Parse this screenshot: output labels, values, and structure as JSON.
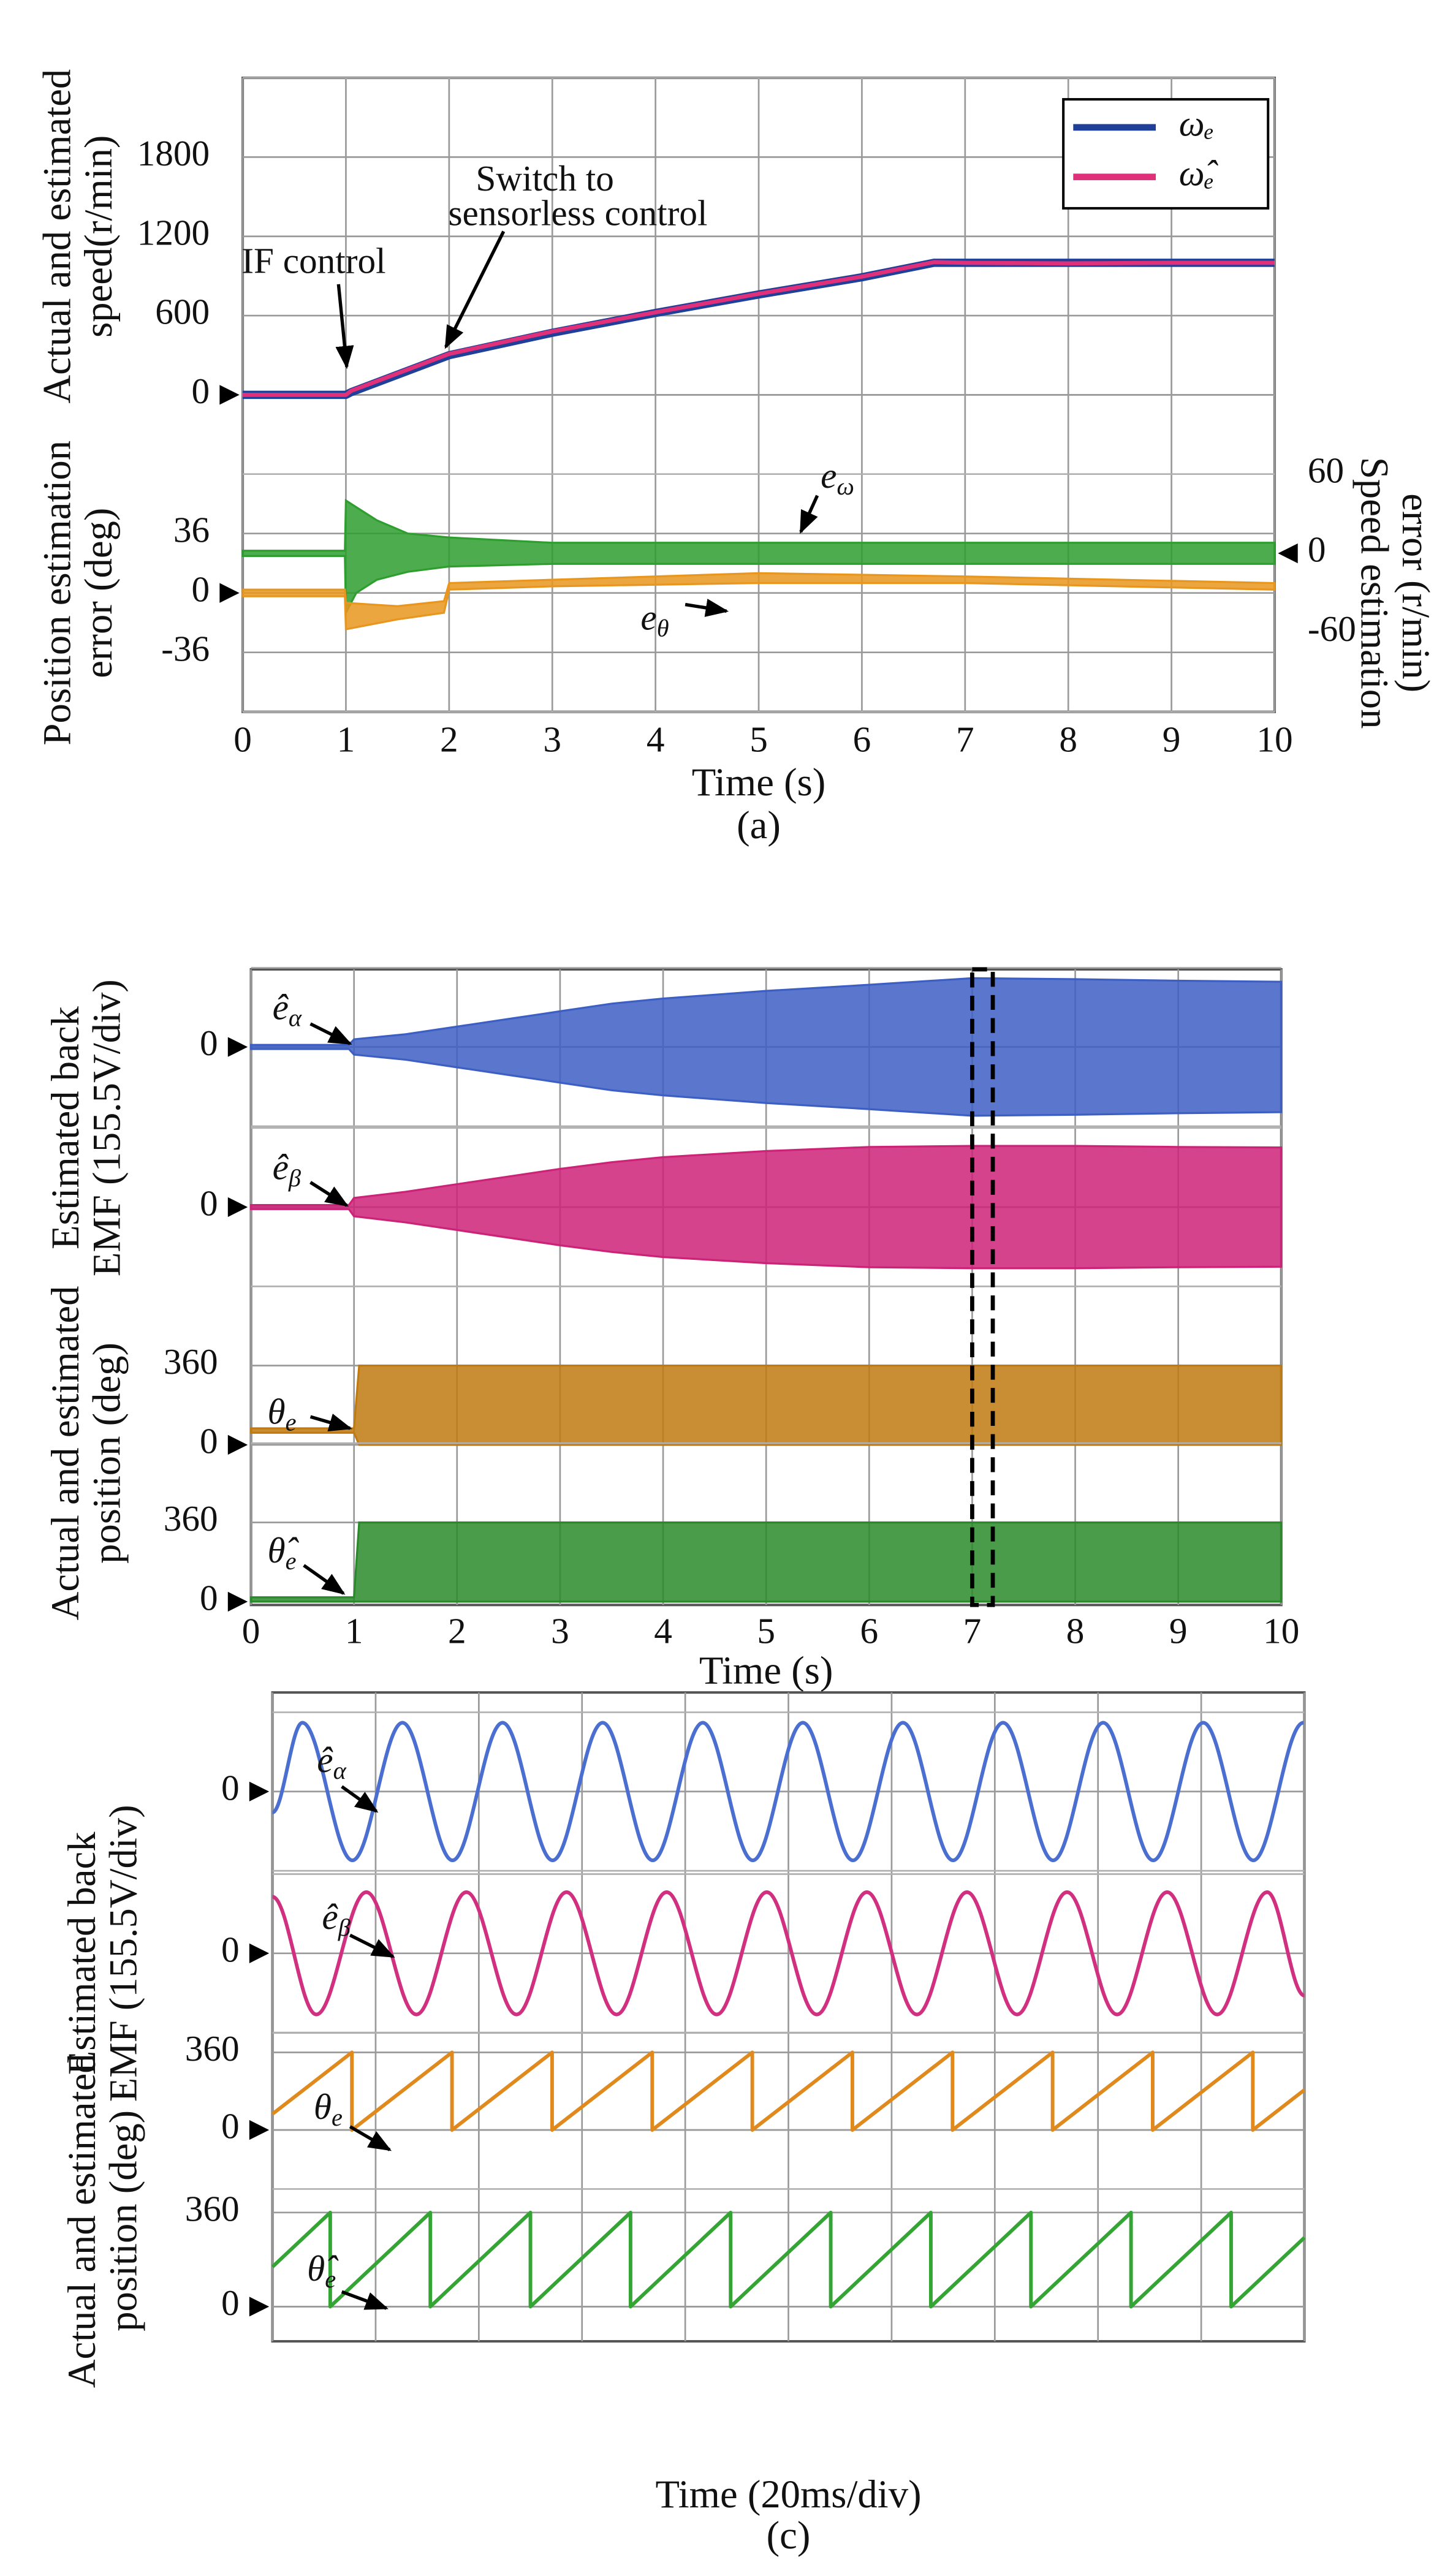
{
  "chart_data": [
    {
      "type": "line",
      "caption": "(a)",
      "xlabel": "Time (s)",
      "xlim": [
        0,
        10
      ],
      "xticks": [
        0,
        1,
        2,
        3,
        4,
        5,
        6,
        7,
        8,
        9,
        10
      ],
      "ylabels": [
        [
          "Actual and estimated",
          "speed(r/min)"
        ],
        [
          "Position estimation",
          "error (deg)"
        ]
      ],
      "y2label": [
        "Speed estimation",
        "error (r/min)"
      ],
      "legend": "upper right",
      "annotations": [
        {
          "text": "IF control"
        },
        {
          "text": "Switch to"
        },
        {
          "text": "sensorless control"
        },
        {
          "text": "e",
          "sub": "ω"
        },
        {
          "text": "e",
          "sub": "θ"
        }
      ],
      "panels": [
        {
          "ylim": [
            0,
            2400
          ],
          "yticks": [
            0,
            600,
            1200,
            1800
          ],
          "series": [
            {
              "name": "ωₑ",
              "color": "#1f3f99",
              "x": [
                0,
                1,
                1.05,
                2,
                3,
                4,
                5,
                6,
                6.7,
                7,
                8,
                9,
                10
              ],
              "values": [
                0,
                0,
                20,
                300,
                470,
                620,
                760,
                890,
                1000,
                1000,
                1000,
                1000,
                1000
              ]
            },
            {
              "name": "ω̂ₑ",
              "color": "#e0307a",
              "x": [
                0,
                1,
                1.05,
                2,
                3,
                4,
                5,
                6,
                6.7,
                7,
                8,
                9,
                10
              ],
              "values": [
                0,
                0,
                30,
                310,
                480,
                625,
                765,
                895,
                1005,
                1000,
                995,
                1000,
                1000
              ]
            }
          ]
        },
        {
          "ylim": [
            -72,
            72
          ],
          "yticks": [
            -36,
            0,
            36
          ],
          "y2lim": [
            -120,
            60
          ],
          "y2ticks": [
            -60,
            0,
            60
          ],
          "series": [
            {
              "axis": "y2",
              "color": "#2e9e2e",
              "x": [
                0,
                0.99,
                1,
                1.1,
                1.3,
                1.6,
                2,
                3,
                5,
                7,
                10
              ],
              "upper": [
                2,
                2,
                40,
                35,
                25,
                15,
                12,
                8,
                8,
                8,
                8
              ],
              "lower": [
                -2,
                -2,
                -45,
                -30,
                -20,
                -14,
                -10,
                -8,
                -8,
                -8,
                -8
              ]
            },
            {
              "color": "#e8961e",
              "x": [
                0,
                0.99,
                1,
                1.5,
                1.95,
                2,
                3,
                5,
                7,
                10
              ],
              "upper": [
                2,
                2,
                -6,
                -8,
                -5,
                6,
                8,
                12,
                10,
                6
              ],
              "lower": [
                -2,
                -2,
                -22,
                -16,
                -12,
                2,
                4,
                6,
                6,
                2
              ]
            }
          ]
        }
      ]
    },
    {
      "type": "line",
      "caption": "(b)",
      "xlabel": "Time (s)",
      "xlim": [
        0,
        10
      ],
      "xticks": [
        0,
        1,
        2,
        3,
        4,
        5,
        6,
        7,
        8,
        9,
        10
      ],
      "ylabels": [
        [
          "Estimated back",
          "EMF (155.5V/div)"
        ],
        [
          "Actual and estimated",
          "position (deg)"
        ]
      ],
      "highlight": [
        7,
        7.2
      ],
      "annotations": [
        {
          "text": "ê",
          "sub": "α"
        },
        {
          "text": "ê",
          "sub": "β"
        },
        {
          "text": "θ",
          "sub": "e"
        },
        {
          "text": "θ̂",
          "sub": "e"
        }
      ],
      "panels": [
        {
          "ylim": [
            -155.5,
            155.5
          ],
          "yticks": [
            0
          ],
          "series": [
            {
              "color": "#3d5fc4",
              "x": [
                0,
                0.95,
                1,
                1.5,
                2,
                2.5,
                3,
                3.5,
                4,
                5,
                6,
                7,
                8,
                9,
                10
              ],
              "upper": [
                4,
                4,
                15,
                25,
                40,
                55,
                70,
                85,
                95,
                110,
                122,
                135,
                133,
                130,
                128
              ],
              "lower": [
                -4,
                -4,
                -15,
                -25,
                -40,
                -55,
                -70,
                -85,
                -95,
                -110,
                -122,
                -135,
                -133,
                -130,
                -128
              ]
            }
          ]
        },
        {
          "ylim": [
            -155.5,
            155.5
          ],
          "yticks": [
            0
          ],
          "series": [
            {
              "color": "#cc2277",
              "x": [
                0,
                0.95,
                1,
                1.5,
                2,
                2.5,
                3,
                3.5,
                4,
                5,
                6,
                7,
                8,
                9,
                10
              ],
              "upper": [
                4,
                4,
                18,
                30,
                45,
                60,
                75,
                88,
                98,
                110,
                118,
                120,
                120,
                118,
                117
              ],
              "lower": [
                -4,
                -4,
                -18,
                -30,
                -45,
                -60,
                -75,
                -88,
                -98,
                -110,
                -118,
                -120,
                -120,
                -118,
                -117
              ]
            }
          ]
        },
        {
          "ylim": [
            0,
            720
          ],
          "yticks": [
            0,
            360
          ],
          "series": [
            {
              "color": "#c07a10",
              "x": [
                0,
                1,
                1.05,
                10
              ],
              "upper": [
                75,
                75,
                360,
                360
              ],
              "lower": [
                55,
                55,
                0,
                0
              ]
            }
          ]
        },
        {
          "ylim": [
            0,
            720
          ],
          "yticks": [
            0,
            360
          ],
          "series": [
            {
              "color": "#2a8a2a",
              "x": [
                0,
                1,
                1.05,
                10
              ],
              "upper": [
                20,
                20,
                360,
                360
              ],
              "lower": [
                0,
                0,
                0,
                0
              ]
            }
          ]
        }
      ]
    },
    {
      "type": "line",
      "caption": "(c)",
      "xlabel": "Time (20ms/div)",
      "xlim": [
        0,
        200
      ],
      "xgrid": [
        0,
        20,
        40,
        60,
        80,
        100,
        120,
        140,
        160,
        180,
        200
      ],
      "ylabels": [
        [
          "Estimated back",
          "EMF (155.5V/div)"
        ],
        [
          "Actual and estimated",
          "position (deg)"
        ]
      ],
      "annotations": [
        {
          "text": "ê",
          "sub": "α"
        },
        {
          "text": "ê",
          "sub": "β"
        },
        {
          "text": "θ",
          "sub": "e"
        },
        {
          "text": "θ̂",
          "sub": "e"
        }
      ],
      "panels": [
        {
          "ylim": [
            -155.5,
            155.5
          ],
          "yticks": [
            0
          ],
          "series": [
            {
              "color": "#4a6fd0",
              "smooth": true,
              "x": [
                0,
                5.8,
                15.5,
                25.2,
                34.9,
                44.6,
                54.3,
                64,
                73.7,
                83.4,
                93.1,
                102.8,
                112.5,
                122.2,
                131.9,
                141.6,
                151.3,
                161,
                170.7,
                180.4,
                190.1,
                199.8
              ],
              "values": [
                -41,
                135,
                -135,
                135,
                -135,
                135,
                -135,
                135,
                -135,
                135,
                -135,
                135,
                -135,
                135,
                -135,
                135,
                -135,
                135,
                -135,
                135,
                -135,
                135
              ]
            }
          ]
        },
        {
          "ylim": [
            -155.5,
            155.5
          ],
          "yticks": [
            0
          ],
          "series": [
            {
              "color": "#d0307f",
              "smooth": true,
              "x": [
                0,
                8.5,
                18.2,
                27.9,
                37.6,
                47.3,
                57,
                66.7,
                76.4,
                86.1,
                95.8,
                105.5,
                115.2,
                124.9,
                134.6,
                144.3,
                154,
                163.7,
                173.4,
                183.1,
                192.8,
                200
              ],
              "values": [
                111,
                -120,
                120,
                -120,
                120,
                -120,
                120,
                -120,
                120,
                -120,
                120,
                -120,
                120,
                -120,
                120,
                -120,
                120,
                -120,
                120,
                -120,
                120,
                -83
              ]
            }
          ]
        },
        {
          "ylim": [
            0,
            450
          ],
          "yticks": [
            0,
            360
          ],
          "series": [
            {
              "color": "#e08a1e",
              "x": [
                0,
                15.4,
                15.4,
                34.8,
                34.8,
                54.2,
                54.2,
                73.6,
                73.6,
                93,
                93,
                112.4,
                112.4,
                131.8,
                131.8,
                151.2,
                151.2,
                170.6,
                170.6,
                190,
                190,
                200
              ],
              "values": [
                74,
                360,
                0,
                360,
                0,
                360,
                0,
                360,
                0,
                360,
                0,
                360,
                0,
                360,
                0,
                360,
                0,
                360,
                0,
                360,
                0,
                186
              ]
            }
          ]
        },
        {
          "ylim": [
            0,
            450
          ],
          "yticks": [
            0,
            360
          ],
          "series": [
            {
              "color": "#34a534",
              "x": [
                0,
                11.2,
                11.2,
                30.6,
                30.6,
                50,
                50,
                69.4,
                69.4,
                88.8,
                88.8,
                108.2,
                108.2,
                127.6,
                127.6,
                147,
                147,
                166.4,
                166.4,
                185.8,
                185.8,
                200
              ],
              "values": [
                152,
                360,
                0,
                360,
                0,
                360,
                0,
                360,
                0,
                360,
                0,
                360,
                0,
                360,
                0,
                360,
                0,
                360,
                0,
                360,
                0,
                264
              ]
            }
          ]
        }
      ]
    }
  ]
}
